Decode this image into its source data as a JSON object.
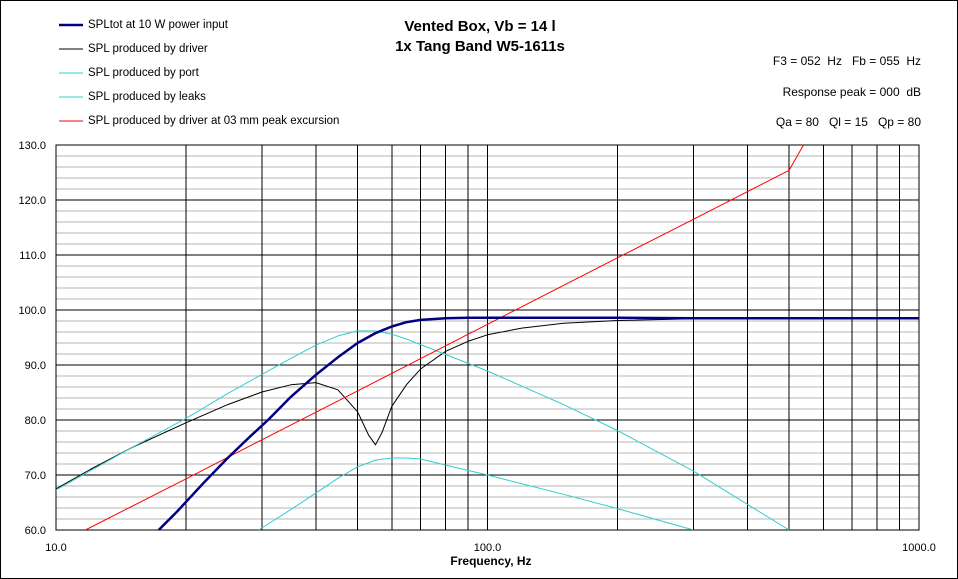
{
  "chart_data": {
    "type": "line",
    "title": "Vented Box, Vb = 14 l",
    "subtitle": "1x Tang Band W5-1611s",
    "xlabel": "Frequency, Hz",
    "ylabel": "",
    "xscale": "log",
    "xlim": [
      10,
      1000
    ],
    "ylim": [
      60,
      130
    ],
    "x_tick_labels": [
      "10.0",
      "100.0",
      "1000.0"
    ],
    "y_tick_labels": [
      "60.0",
      "70.0",
      "80.0",
      "90.0",
      "100.0",
      "110.0",
      "120.0",
      "130.0"
    ],
    "grid": true,
    "legend_position": "top-left",
    "info": [
      "F3 = 052  Hz   Fb = 055  Hz",
      "Response peak = 000  dB",
      "Qa = 80   Ql = 15   Qp = 80"
    ],
    "series": [
      {
        "name": "SPLtot at 10 W power input",
        "color": "#000080",
        "width": 2.5,
        "x": [
          17.3,
          19,
          22,
          25,
          28,
          31,
          35,
          40,
          45,
          50,
          55,
          60,
          65,
          70,
          80,
          90,
          100,
          120,
          150,
          200,
          300,
          1000
        ],
        "y": [
          60,
          63.2,
          68.6,
          73.1,
          76.8,
          80,
          84.2,
          88.2,
          91.4,
          94,
          95.8,
          97,
          97.8,
          98.2,
          98.5,
          98.6,
          98.6,
          98.6,
          98.6,
          98.6,
          98.5,
          98.5
        ]
      },
      {
        "name": "SPL produced by driver",
        "color": "#000000",
        "width": 1,
        "x": [
          10,
          12,
          15,
          20,
          25,
          30,
          35,
          40,
          45,
          50,
          53,
          55,
          57,
          60,
          65,
          70,
          80,
          90,
          100,
          120,
          150,
          200,
          300,
          500,
          1000
        ],
        "y": [
          67.5,
          71,
          75,
          79.5,
          82.8,
          85.1,
          86.4,
          86.8,
          85.5,
          81.5,
          77.3,
          75.5,
          77.8,
          82.5,
          86.5,
          89.3,
          92.5,
          94.3,
          95.5,
          96.7,
          97.6,
          98.1,
          98.4,
          98.5,
          98.5
        ]
      },
      {
        "name": "SPL produced by port",
        "color": "#33cccc",
        "width": 1,
        "x": [
          10,
          15,
          20,
          25,
          30,
          35,
          40,
          45,
          50,
          55,
          60,
          65,
          70,
          80,
          100,
          150,
          200,
          300,
          500
        ],
        "y": [
          67.3,
          75,
          80.3,
          84.8,
          88.3,
          91.2,
          93.6,
          95.3,
          96.2,
          96.2,
          95.6,
          94.7,
          93.7,
          91.9,
          88.9,
          82.8,
          78.1,
          70.7,
          60
        ]
      },
      {
        "name": "SPL produced by leaks",
        "color": "#33cccc",
        "width": 1,
        "x": [
          29.5,
          35,
          40,
          45,
          50,
          55,
          60,
          65,
          70,
          80,
          100,
          150,
          200,
          300
        ],
        "y": [
          60,
          63.7,
          66.7,
          69.4,
          71.5,
          72.7,
          73.1,
          73.1,
          72.9,
          71.8,
          70,
          66.5,
          63.9,
          60
        ]
      },
      {
        "name": "SPL produced by driver at 03 mm peak excursion",
        "color": "#ff0000",
        "width": 1,
        "x": [
          11.7,
          20,
          30,
          50,
          100,
          200,
          300,
          500,
          540
        ],
        "y": [
          60,
          69.3,
          76.4,
          85.3,
          97.4,
          109.5,
          116.5,
          125.4,
          130
        ]
      }
    ]
  }
}
